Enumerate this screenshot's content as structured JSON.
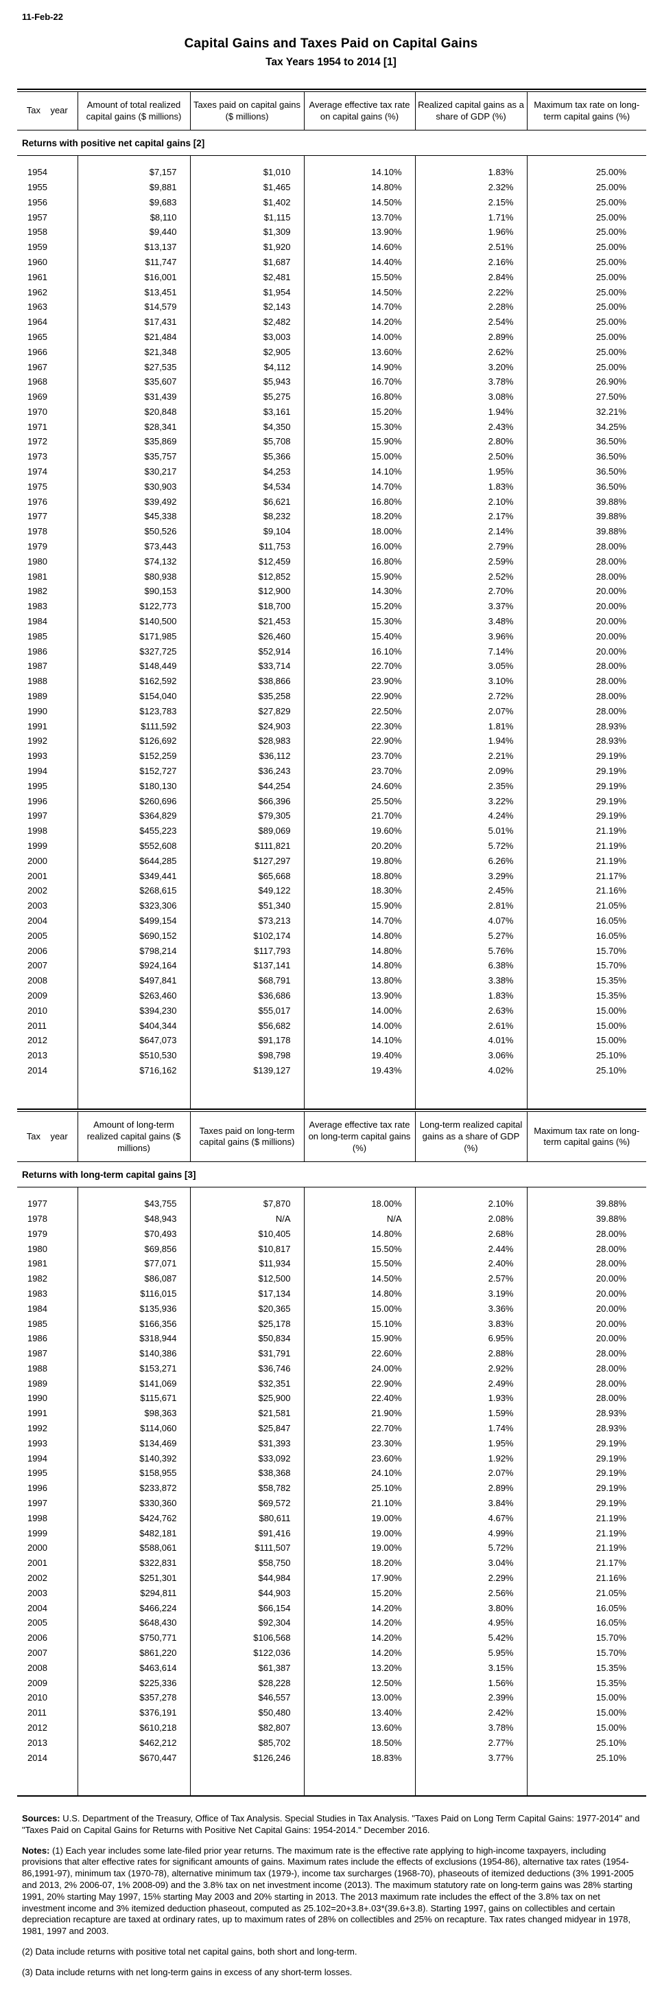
{
  "page": {
    "date": "11-Feb-22",
    "title": "Capital Gains and Taxes Paid on Capital Gains",
    "subtitle": "Tax Years 1954 to 2014 [1]"
  },
  "table1": {
    "section_label": "Returns with positive net capital gains [2]",
    "columns": [
      "Tax    year",
      "Amount of total realized capital gains ($ millions)",
      "Taxes paid on capital gains ($ millions)",
      "Average effective tax rate on capital gains (%)",
      "Realized capital gains as a share of GDP (%)",
      "Maximum tax rate on long-term capital gains (%)"
    ],
    "rows": [
      [
        "1954",
        "$7,157",
        "$1,010",
        "14.10%",
        "1.83%",
        "25.00%"
      ],
      [
        "1955",
        "$9,881",
        "$1,465",
        "14.80%",
        "2.32%",
        "25.00%"
      ],
      [
        "1956",
        "$9,683",
        "$1,402",
        "14.50%",
        "2.15%",
        "25.00%"
      ],
      [
        "1957",
        "$8,110",
        "$1,115",
        "13.70%",
        "1.71%",
        "25.00%"
      ],
      [
        "1958",
        "$9,440",
        "$1,309",
        "13.90%",
        "1.96%",
        "25.00%"
      ],
      [
        "1959",
        "$13,137",
        "$1,920",
        "14.60%",
        "2.51%",
        "25.00%"
      ],
      [
        "1960",
        "$11,747",
        "$1,687",
        "14.40%",
        "2.16%",
        "25.00%"
      ],
      [
        "1961",
        "$16,001",
        "$2,481",
        "15.50%",
        "2.84%",
        "25.00%"
      ],
      [
        "1962",
        "$13,451",
        "$1,954",
        "14.50%",
        "2.22%",
        "25.00%"
      ],
      [
        "1963",
        "$14,579",
        "$2,143",
        "14.70%",
        "2.28%",
        "25.00%"
      ],
      [
        "1964",
        "$17,431",
        "$2,482",
        "14.20%",
        "2.54%",
        "25.00%"
      ],
      [
        "1965",
        "$21,484",
        "$3,003",
        "14.00%",
        "2.89%",
        "25.00%"
      ],
      [
        "1966",
        "$21,348",
        "$2,905",
        "13.60%",
        "2.62%",
        "25.00%"
      ],
      [
        "1967",
        "$27,535",
        "$4,112",
        "14.90%",
        "3.20%",
        "25.00%"
      ],
      [
        "1968",
        "$35,607",
        "$5,943",
        "16.70%",
        "3.78%",
        "26.90%"
      ],
      [
        "1969",
        "$31,439",
        "$5,275",
        "16.80%",
        "3.08%",
        "27.50%"
      ],
      [
        "1970",
        "$20,848",
        "$3,161",
        "15.20%",
        "1.94%",
        "32.21%"
      ],
      [
        "1971",
        "$28,341",
        "$4,350",
        "15.30%",
        "2.43%",
        "34.25%"
      ],
      [
        "1972",
        "$35,869",
        "$5,708",
        "15.90%",
        "2.80%",
        "36.50%"
      ],
      [
        "1973",
        "$35,757",
        "$5,366",
        "15.00%",
        "2.50%",
        "36.50%"
      ],
      [
        "1974",
        "$30,217",
        "$4,253",
        "14.10%",
        "1.95%",
        "36.50%"
      ],
      [
        "1975",
        "$30,903",
        "$4,534",
        "14.70%",
        "1.83%",
        "36.50%"
      ],
      [
        "1976",
        "$39,492",
        "$6,621",
        "16.80%",
        "2.10%",
        "39.88%"
      ],
      [
        "1977",
        "$45,338",
        "$8,232",
        "18.20%",
        "2.17%",
        "39.88%"
      ],
      [
        "1978",
        "$50,526",
        "$9,104",
        "18.00%",
        "2.14%",
        "39.88%"
      ],
      [
        "1979",
        "$73,443",
        "$11,753",
        "16.00%",
        "2.79%",
        "28.00%"
      ],
      [
        "1980",
        "$74,132",
        "$12,459",
        "16.80%",
        "2.59%",
        "28.00%"
      ],
      [
        "1981",
        "$80,938",
        "$12,852",
        "15.90%",
        "2.52%",
        "28.00%"
      ],
      [
        "1982",
        "$90,153",
        "$12,900",
        "14.30%",
        "2.70%",
        "20.00%"
      ],
      [
        "1983",
        "$122,773",
        "$18,700",
        "15.20%",
        "3.37%",
        "20.00%"
      ],
      [
        "1984",
        "$140,500",
        "$21,453",
        "15.30%",
        "3.48%",
        "20.00%"
      ],
      [
        "1985",
        "$171,985",
        "$26,460",
        "15.40%",
        "3.96%",
        "20.00%"
      ],
      [
        "1986",
        "$327,725",
        "$52,914",
        "16.10%",
        "7.14%",
        "20.00%"
      ],
      [
        "1987",
        "$148,449",
        "$33,714",
        "22.70%",
        "3.05%",
        "28.00%"
      ],
      [
        "1988",
        "$162,592",
        "$38,866",
        "23.90%",
        "3.10%",
        "28.00%"
      ],
      [
        "1989",
        "$154,040",
        "$35,258",
        "22.90%",
        "2.72%",
        "28.00%"
      ],
      [
        "1990",
        "$123,783",
        "$27,829",
        "22.50%",
        "2.07%",
        "28.00%"
      ],
      [
        "1991",
        "$111,592",
        "$24,903",
        "22.30%",
        "1.81%",
        "28.93%"
      ],
      [
        "1992",
        "$126,692",
        "$28,983",
        "22.90%",
        "1.94%",
        "28.93%"
      ],
      [
        "1993",
        "$152,259",
        "$36,112",
        "23.70%",
        "2.21%",
        "29.19%"
      ],
      [
        "1994",
        "$152,727",
        "$36,243",
        "23.70%",
        "2.09%",
        "29.19%"
      ],
      [
        "1995",
        "$180,130",
        "$44,254",
        "24.60%",
        "2.35%",
        "29.19%"
      ],
      [
        "1996",
        "$260,696",
        "$66,396",
        "25.50%",
        "3.22%",
        "29.19%"
      ],
      [
        "1997",
        "$364,829",
        "$79,305",
        "21.70%",
        "4.24%",
        "29.19%"
      ],
      [
        "1998",
        "$455,223",
        "$89,069",
        "19.60%",
        "5.01%",
        "21.19%"
      ],
      [
        "1999",
        "$552,608",
        "$111,821",
        "20.20%",
        "5.72%",
        "21.19%"
      ],
      [
        "2000",
        "$644,285",
        "$127,297",
        "19.80%",
        "6.26%",
        "21.19%"
      ],
      [
        "2001",
        "$349,441",
        "$65,668",
        "18.80%",
        "3.29%",
        "21.17%"
      ],
      [
        "2002",
        "$268,615",
        "$49,122",
        "18.30%",
        "2.45%",
        "21.16%"
      ],
      [
        "2003",
        "$323,306",
        "$51,340",
        "15.90%",
        "2.81%",
        "21.05%"
      ],
      [
        "2004",
        "$499,154",
        "$73,213",
        "14.70%",
        "4.07%",
        "16.05%"
      ],
      [
        "2005",
        "$690,152",
        "$102,174",
        "14.80%",
        "5.27%",
        "16.05%"
      ],
      [
        "2006",
        "$798,214",
        "$117,793",
        "14.80%",
        "5.76%",
        "15.70%"
      ],
      [
        "2007",
        "$924,164",
        "$137,141",
        "14.80%",
        "6.38%",
        "15.70%"
      ],
      [
        "2008",
        "$497,841",
        "$68,791",
        "13.80%",
        "3.38%",
        "15.35%"
      ],
      [
        "2009",
        "$263,460",
        "$36,686",
        "13.90%",
        "1.83%",
        "15.35%"
      ],
      [
        "2010",
        "$394,230",
        "$55,017",
        "14.00%",
        "2.63%",
        "15.00%"
      ],
      [
        "2011",
        "$404,344",
        "$56,682",
        "14.00%",
        "2.61%",
        "15.00%"
      ],
      [
        "2012",
        "$647,073",
        "$91,178",
        "14.10%",
        "4.01%",
        "15.00%"
      ],
      [
        "2013",
        "$510,530",
        "$98,798",
        "19.40%",
        "3.06%",
        "25.10%"
      ],
      [
        "2014",
        "$716,162",
        "$139,127",
        "19.43%",
        "4.02%",
        "25.10%"
      ]
    ]
  },
  "table2": {
    "section_label": "Returns with long-term capital gains [3]",
    "columns": [
      "Tax    year",
      "Amount of long-term realized capital gains ($ millions)",
      "Taxes paid on long-term capital gains ($ millions)",
      "Average effective tax rate on long-term capital gains (%)",
      "Long-term realized capital gains as a share of GDP (%)",
      "Maximum tax rate on long-term capital gains (%)"
    ],
    "rows": [
      [
        "1977",
        "$43,755",
        "$7,870",
        "18.00%",
        "2.10%",
        "39.88%"
      ],
      [
        "1978",
        "$48,943",
        "N/A",
        "N/A",
        "2.08%",
        "39.88%"
      ],
      [
        "1979",
        "$70,493",
        "$10,405",
        "14.80%",
        "2.68%",
        "28.00%"
      ],
      [
        "1980",
        "$69,856",
        "$10,817",
        "15.50%",
        "2.44%",
        "28.00%"
      ],
      [
        "1981",
        "$77,071",
        "$11,934",
        "15.50%",
        "2.40%",
        "28.00%"
      ],
      [
        "1982",
        "$86,087",
        "$12,500",
        "14.50%",
        "2.57%",
        "20.00%"
      ],
      [
        "1983",
        "$116,015",
        "$17,134",
        "14.80%",
        "3.19%",
        "20.00%"
      ],
      [
        "1984",
        "$135,936",
        "$20,365",
        "15.00%",
        "3.36%",
        "20.00%"
      ],
      [
        "1985",
        "$166,356",
        "$25,178",
        "15.10%",
        "3.83%",
        "20.00%"
      ],
      [
        "1986",
        "$318,944",
        "$50,834",
        "15.90%",
        "6.95%",
        "20.00%"
      ],
      [
        "1987",
        "$140,386",
        "$31,791",
        "22.60%",
        "2.88%",
        "28.00%"
      ],
      [
        "1988",
        "$153,271",
        "$36,746",
        "24.00%",
        "2.92%",
        "28.00%"
      ],
      [
        "1989",
        "$141,069",
        "$32,351",
        "22.90%",
        "2.49%",
        "28.00%"
      ],
      [
        "1990",
        "$115,671",
        "$25,900",
        "22.40%",
        "1.93%",
        "28.00%"
      ],
      [
        "1991",
        "$98,363",
        "$21,581",
        "21.90%",
        "1.59%",
        "28.93%"
      ],
      [
        "1992",
        "$114,060",
        "$25,847",
        "22.70%",
        "1.74%",
        "28.93%"
      ],
      [
        "1993",
        "$134,469",
        "$31,393",
        "23.30%",
        "1.95%",
        "29.19%"
      ],
      [
        "1994",
        "$140,392",
        "$33,092",
        "23.60%",
        "1.92%",
        "29.19%"
      ],
      [
        "1995",
        "$158,955",
        "$38,368",
        "24.10%",
        "2.07%",
        "29.19%"
      ],
      [
        "1996",
        "$233,872",
        "$58,782",
        "25.10%",
        "2.89%",
        "29.19%"
      ],
      [
        "1997",
        "$330,360",
        "$69,572",
        "21.10%",
        "3.84%",
        "29.19%"
      ],
      [
        "1998",
        "$424,762",
        "$80,611",
        "19.00%",
        "4.67%",
        "21.19%"
      ],
      [
        "1999",
        "$482,181",
        "$91,416",
        "19.00%",
        "4.99%",
        "21.19%"
      ],
      [
        "2000",
        "$588,061",
        "$111,507",
        "19.00%",
        "5.72%",
        "21.19%"
      ],
      [
        "2001",
        "$322,831",
        "$58,750",
        "18.20%",
        "3.04%",
        "21.17%"
      ],
      [
        "2002",
        "$251,301",
        "$44,984",
        "17.90%",
        "2.29%",
        "21.16%"
      ],
      [
        "2003",
        "$294,811",
        "$44,903",
        "15.20%",
        "2.56%",
        "21.05%"
      ],
      [
        "2004",
        "$466,224",
        "$66,154",
        "14.20%",
        "3.80%",
        "16.05%"
      ],
      [
        "2005",
        "$648,430",
        "$92,304",
        "14.20%",
        "4.95%",
        "16.05%"
      ],
      [
        "2006",
        "$750,771",
        "$106,568",
        "14.20%",
        "5.42%",
        "15.70%"
      ],
      [
        "2007",
        "$861,220",
        "$122,036",
        "14.20%",
        "5.95%",
        "15.70%"
      ],
      [
        "2008",
        "$463,614",
        "$61,387",
        "13.20%",
        "3.15%",
        "15.35%"
      ],
      [
        "2009",
        "$225,336",
        "$28,228",
        "12.50%",
        "1.56%",
        "15.35%"
      ],
      [
        "2010",
        "$357,278",
        "$46,557",
        "13.00%",
        "2.39%",
        "15.00%"
      ],
      [
        "2011",
        "$376,191",
        "$50,480",
        "13.40%",
        "2.42%",
        "15.00%"
      ],
      [
        "2012",
        "$610,218",
        "$82,807",
        "13.60%",
        "3.78%",
        "15.00%"
      ],
      [
        "2013",
        "$462,212",
        "$85,702",
        "18.50%",
        "2.77%",
        "25.10%"
      ],
      [
        "2014",
        "$670,447",
        "$126,246",
        "18.83%",
        "3.77%",
        "25.10%"
      ]
    ]
  },
  "footer": {
    "sources_label": "Sources:",
    "sources_text": " U.S. Department of the Treasury, Office of Tax Analysis. Special Studies in Tax Analysis. \"Taxes Paid on Long Term Capital Gains: 1977-2014\" and \"Taxes Paid on Capital Gains for Returns with Positive Net Capital Gains: 1954-2014.\" December 2016.",
    "notes_label": "Notes:",
    "notes_text": " (1) Each year includes some late-filed prior year returns. The maximum rate is the effective rate applying to high-income taxpayers, including provisions that alter effective rates for significant amounts of gains. Maximum rates include the effects of exclusions (1954-86), alternative tax rates (1954-86,1991-97), minimum tax (1970-78), alternative minimum tax (1979-), income tax surcharges (1968-70), phaseouts of itemized deductions (3% 1991-2005 and 2013, 2% 2006-07, 1% 2008-09) and the 3.8% tax on net investment income (2013). The maximum statutory rate on long-term gains was 28% starting 1991, 20% starting May 1997, 15% starting May 2003 and 20% starting in 2013. The 2013 maximum rate includes the effect of the 3.8% tax on net investment income and 3% itemized deduction phaseout, computed as 25.102=20+3.8+.03*(39.6+3.8). Starting 1997, gains on collectibles and certain depreciation recapture are taxed at ordinary rates, up to maximum rates of 28% on collectibles and 25% on recapture. Tax rates changed midyear in 1978, 1981, 1997 and 2003.",
    "note2": "(2) Data include returns with positive total net capital gains, both short and long-term.",
    "note3": "(3) Data include returns with net long-term gains in excess of any short-term losses."
  }
}
